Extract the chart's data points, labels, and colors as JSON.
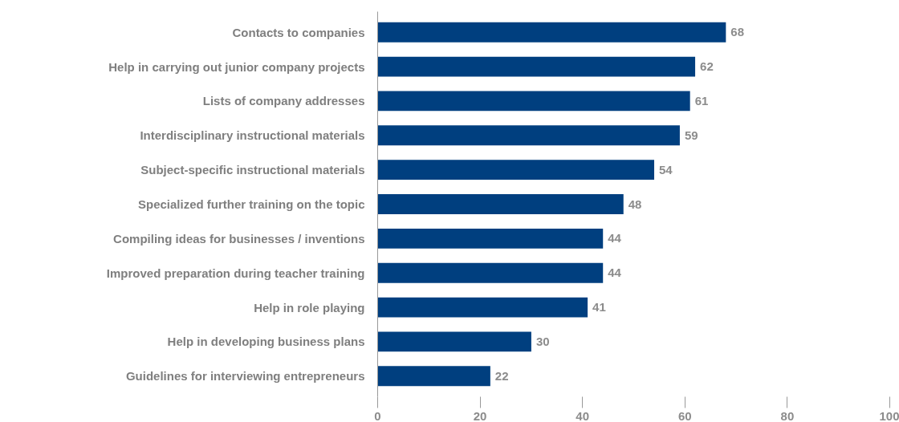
{
  "chart_data": {
    "type": "bar",
    "orientation": "horizontal",
    "categories": [
      "Contacts to companies",
      "Help in carrying out junior company projects",
      "Lists of company addresses",
      "Interdisciplinary instructional materials",
      "Subject-specific instructional materials",
      "Specialized further training on the topic",
      "Compiling ideas for businesses / inventions",
      "Improved preparation during teacher training",
      "Help in role playing",
      "Help in developing business plans",
      "Guidelines for interviewing entrepreneurs"
    ],
    "values": [
      68,
      62,
      61,
      59,
      54,
      48,
      44,
      44,
      41,
      30,
      22
    ],
    "color": "#003f7f",
    "xlim": [
      0,
      100
    ],
    "xticks": [
      0,
      20,
      40,
      60,
      80,
      100
    ],
    "data_labels": true,
    "grid": false
  }
}
